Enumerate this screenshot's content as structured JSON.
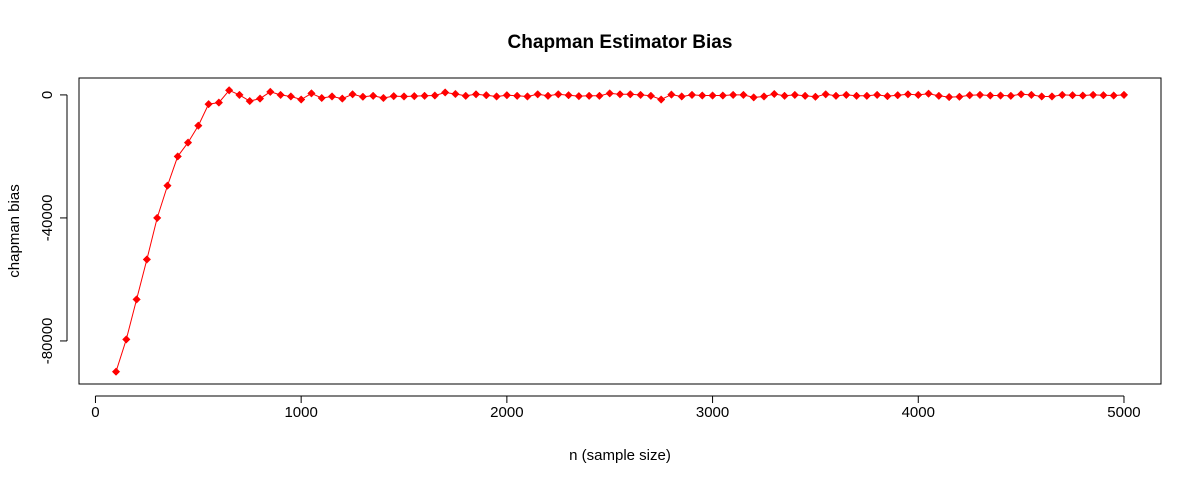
{
  "chart_data": {
    "type": "line",
    "title": "Chapman Estimator Bias",
    "xlabel": "n (sample size)",
    "ylabel": "chapman bias",
    "xlim": [
      -80,
      5180
    ],
    "ylim": [
      -94000,
      5500
    ],
    "x_ticks": [
      0,
      1000,
      2000,
      3000,
      4000,
      5000
    ],
    "x_tick_labels": [
      "0",
      "1000",
      "2000",
      "3000",
      "4000",
      "5000"
    ],
    "y_ticks": [
      0,
      -40000,
      -80000
    ],
    "y_tick_labels": [
      "0",
      "-40000",
      "-80000"
    ],
    "grid": false,
    "legend": "none",
    "colors": {
      "series": "#ff0000",
      "axes": "#000000"
    },
    "series": [
      {
        "x": [
          100,
          150,
          200,
          250,
          300,
          350,
          400,
          450,
          500,
          550,
          600,
          650,
          700,
          750,
          800,
          850,
          900,
          950,
          1000,
          1050,
          1100,
          1150,
          1200,
          1250,
          1300,
          1350,
          1400,
          1450,
          1500,
          1550,
          1600,
          1650,
          1700,
          1750,
          1800,
          1850,
          1900,
          1950,
          2000,
          2050,
          2100,
          2150,
          2200,
          2250,
          2300,
          2350,
          2400,
          2450,
          2500,
          2550,
          2600,
          2650,
          2700,
          2750,
          2800,
          2850,
          2900,
          2950,
          3000,
          3050,
          3100,
          3150,
          3200,
          3250,
          3300,
          3350,
          3400,
          3450,
          3500,
          3550,
          3600,
          3650,
          3700,
          3750,
          3800,
          3850,
          3900,
          3950,
          4000,
          4050,
          4100,
          4150,
          4200,
          4250,
          4300,
          4350,
          4400,
          4450,
          4500,
          4550,
          4600,
          4650,
          4700,
          4750,
          4800,
          4850,
          4900,
          4950,
          5000
        ],
        "y": [
          -90000,
          -79500,
          -66500,
          -53500,
          -40000,
          -29500,
          -20000,
          -15500,
          -10000,
          -3000,
          -2500,
          1500,
          0,
          -2000,
          -1200,
          1000,
          0,
          -500,
          -1500,
          500,
          -1000,
          -500,
          -1200,
          200,
          -600,
          -300,
          -1000,
          -400,
          -500,
          -400,
          -300,
          -200,
          800,
          300,
          -300,
          200,
          -100,
          -500,
          -100,
          -300,
          -500,
          200,
          -300,
          200,
          -100,
          -400,
          -300,
          -300,
          500,
          200,
          200,
          0,
          -300,
          -1500,
          100,
          -500,
          0,
          -200,
          -200,
          -200,
          0,
          0,
          -800,
          -500,
          300,
          -300,
          0,
          -300,
          -600,
          200,
          -300,
          0,
          -300,
          -300,
          0,
          -400,
          -100,
          200,
          0,
          400,
          -300,
          -700,
          -600,
          -100,
          0,
          -200,
          -200,
          -300,
          200,
          0,
          -500,
          -500,
          0,
          -100,
          -200,
          0,
          -100,
          -200,
          0
        ]
      }
    ]
  }
}
